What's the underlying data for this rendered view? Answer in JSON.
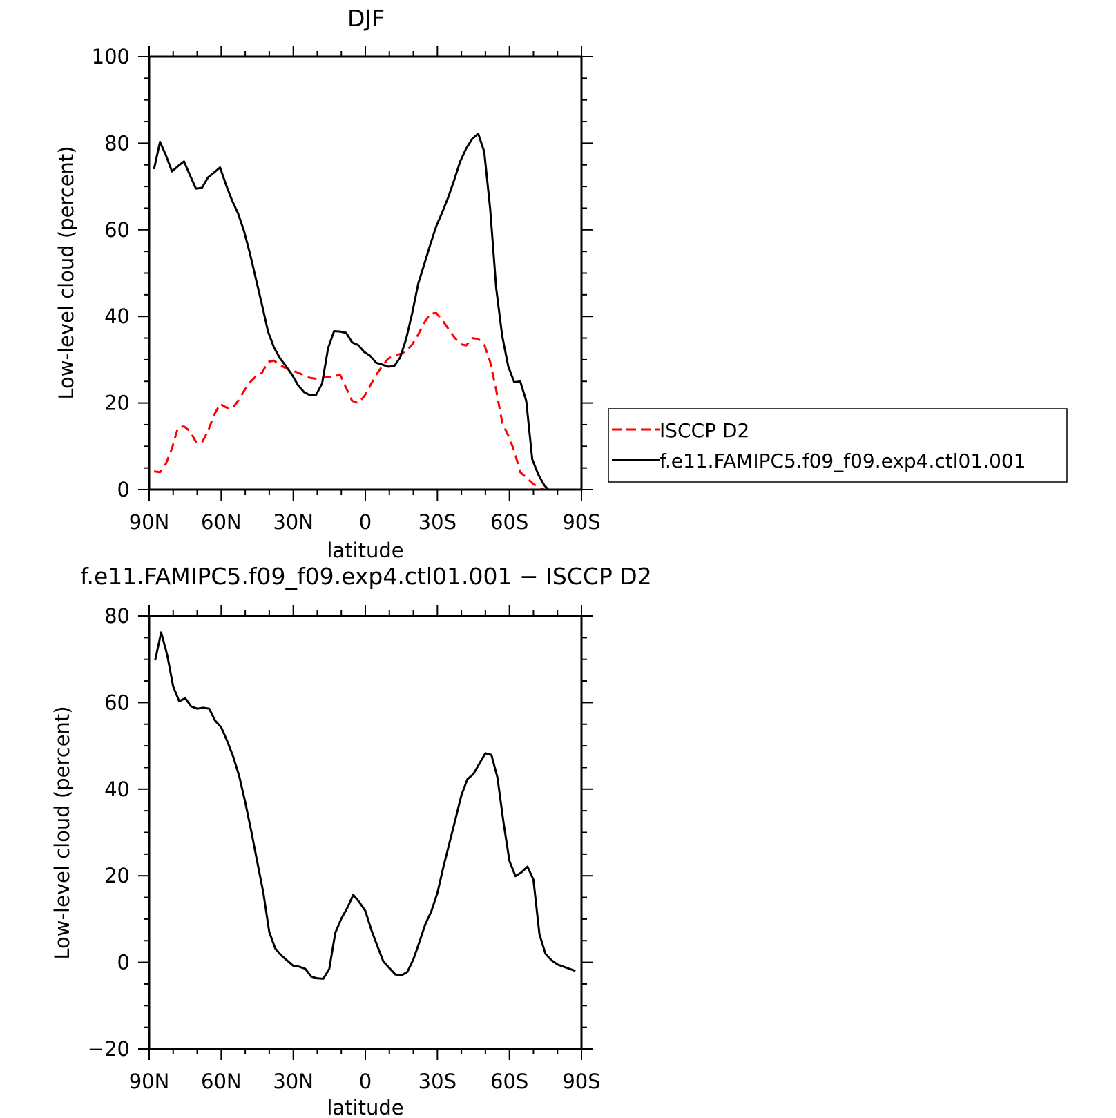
{
  "chart_data": [
    {
      "type": "line",
      "title": "DJF",
      "xlabel": "latitude",
      "ylabel": "Low-level cloud (percent)",
      "ylim": [
        0,
        100
      ],
      "yticks": [
        0,
        20,
        40,
        60,
        80,
        100
      ],
      "xticks": [
        {
          "value": 90,
          "label": "90N"
        },
        {
          "value": 60,
          "label": "60N"
        },
        {
          "value": 30,
          "label": "30N"
        },
        {
          "value": 0,
          "label": "0"
        },
        {
          "value": -30,
          "label": "30S"
        },
        {
          "value": -60,
          "label": "60S"
        },
        {
          "value": -90,
          "label": "90S"
        }
      ],
      "xlim": [
        90,
        -90
      ],
      "grid": false,
      "legend_placement": "right",
      "series": [
        {
          "name": "ISCCP D2",
          "color": "#ff0000",
          "style": "dashed",
          "x": [
            88,
            85.5,
            83,
            80.5,
            78,
            75.5,
            73,
            70.5,
            68,
            65.5,
            63,
            60.5,
            58,
            55.5,
            53,
            50.5,
            48,
            45.5,
            43,
            40.5,
            38,
            35.5,
            33,
            30.5,
            28,
            25.5,
            23,
            20.5,
            18,
            15.5,
            13,
            10.5,
            8,
            5.5,
            3,
            0.5,
            -2,
            -4.5,
            -7,
            -9.5,
            -12,
            -14.5,
            -17,
            -19.5,
            -22,
            -24.5,
            -27,
            -29.5,
            -32,
            -34.5,
            -37,
            -39.5,
            -42,
            -44.5,
            -47,
            -49.5,
            -52,
            -54.5,
            -57,
            -59.5,
            -62,
            -64.5,
            -67,
            -69.5,
            -72,
            -74.5,
            -77,
            -79.5,
            -82,
            -84.5,
            -87,
            -89.5
          ],
          "values": [
            4.2,
            4.0,
            6.0,
            9.5,
            14.3,
            14.6,
            13.5,
            11.0,
            10.9,
            13.5,
            17.2,
            19.8,
            19.0,
            18.6,
            20.5,
            22.8,
            24.8,
            26.2,
            27.0,
            29.5,
            29.8,
            28.8,
            28.0,
            27.5,
            27.0,
            26.4,
            25.8,
            25.6,
            25.8,
            26.0,
            26.2,
            26.5,
            23.5,
            20.5,
            20.0,
            21.5,
            24.0,
            26.5,
            28.5,
            30.2,
            31.0,
            31.3,
            32.0,
            33.5,
            35.8,
            38.5,
            40.6,
            40.8,
            39.2,
            37.2,
            35.2,
            33.6,
            33.3,
            35.0,
            34.8,
            33.5,
            29.5,
            23.0,
            15.5,
            12.5,
            9.0,
            4.0,
            2.8,
            1.5,
            0.5,
            0.0,
            -0.5,
            -1.2,
            -1.8,
            -2.3,
            -2.6,
            -2.8
          ]
        },
        {
          "name": "f.e11.FAMIPC5.f09_f09.exp4.ctl01.001",
          "color": "#000000",
          "style": "solid",
          "x": [
            88,
            85.5,
            83,
            80.5,
            78,
            75.5,
            73,
            70.5,
            68,
            65.5,
            63,
            60.5,
            58,
            55.5,
            53,
            50.5,
            48,
            45.5,
            43,
            40.5,
            38,
            35.5,
            33,
            30.5,
            28,
            25.5,
            23,
            20.5,
            18,
            15.5,
            13,
            10.5,
            8,
            5.5,
            3,
            0.5,
            -2,
            -4.5,
            -7,
            -9.5,
            -12,
            -14.5,
            -17,
            -19.5,
            -22,
            -24.5,
            -27,
            -29.5,
            -32,
            -34.5,
            -37,
            -39.5,
            -42,
            -44.5,
            -47,
            -49.5,
            -52,
            -54.5,
            -57,
            -59.5,
            -62,
            -64.5,
            -67,
            -69.5,
            -72,
            -74.5,
            -77,
            -79.5,
            -82,
            -84.5,
            -87,
            -89.5
          ],
          "values": [
            74.0,
            80.3,
            77.2,
            73.5,
            74.7,
            75.8,
            72.6,
            69.5,
            69.7,
            72.1,
            73.2,
            74.4,
            70.4,
            66.8,
            63.8,
            59.7,
            54.4,
            48.5,
            42.6,
            36.5,
            32.8,
            30.3,
            28.5,
            26.5,
            24.1,
            22.5,
            21.8,
            21.9,
            24.5,
            32.7,
            36.6,
            36.5,
            36.2,
            34.0,
            33.4,
            31.8,
            30.9,
            29.3,
            28.9,
            28.4,
            28.5,
            30.5,
            34.8,
            40.7,
            47.5,
            52.0,
            56.5,
            60.8,
            64.0,
            67.5,
            71.5,
            75.8,
            78.8,
            81.0,
            82.2,
            78.0,
            64.8,
            46.5,
            35.5,
            28.5,
            24.8,
            25.0,
            20.5,
            7.0,
            3.5,
            1.0,
            -0.5,
            -1.5,
            -2.0,
            -2.5,
            -2.8,
            -3.0
          ]
        }
      ]
    },
    {
      "type": "line",
      "title": "f.e11.FAMIPC5.f09_f09.exp4.ctl01.001 − ISCCP D2",
      "xlabel": "latitude",
      "ylabel": "Low-level cloud (percent)",
      "ylim": [
        -20,
        80
      ],
      "yticks": [
        -20,
        0,
        20,
        40,
        60,
        80
      ],
      "ytick_labels": [
        "−20",
        "0",
        "20",
        "40",
        "60",
        "80"
      ],
      "xticks": [
        {
          "value": 90,
          "label": "90N"
        },
        {
          "value": 60,
          "label": "60N"
        },
        {
          "value": 30,
          "label": "30N"
        },
        {
          "value": 0,
          "label": "0"
        },
        {
          "value": -30,
          "label": "30S"
        },
        {
          "value": -60,
          "label": "60S"
        },
        {
          "value": -90,
          "label": "90S"
        }
      ],
      "xlim": [
        90,
        -90
      ],
      "grid": false,
      "series": [
        {
          "color": "#000000",
          "style": "solid",
          "x": [
            87.5,
            85,
            82.5,
            80,
            77.5,
            75,
            72.5,
            70,
            67.5,
            65,
            62.5,
            60,
            57.5,
            55,
            52.5,
            50,
            47.5,
            45,
            42.5,
            40,
            37.5,
            35,
            32.5,
            30,
            27.5,
            25,
            22.5,
            20,
            17.5,
            15,
            12.5,
            10,
            7.5,
            5,
            2.5,
            0,
            -2.5,
            -5,
            -7.5,
            -10,
            -12.5,
            -15,
            -17.5,
            -20,
            -22.5,
            -25,
            -27.5,
            -30,
            -32.5,
            -35,
            -37.5,
            -40,
            -42.5,
            -45,
            -47.5,
            -50,
            -52.5,
            -55,
            -57.5,
            -60,
            -62.5,
            -65,
            -67.5,
            -70,
            -72.5,
            -75,
            -77.5,
            -80,
            -82.5,
            -85,
            -87.5
          ],
          "values": [
            69.8,
            76.2,
            71.0,
            63.7,
            60.3,
            61.0,
            59.1,
            58.6,
            58.8,
            58.6,
            55.8,
            54.3,
            51.1,
            47.5,
            43.0,
            37.0,
            30.3,
            23.2,
            16.2,
            7.0,
            3.2,
            1.6,
            0.4,
            -0.8,
            -1.0,
            -1.5,
            -3.3,
            -3.7,
            -3.8,
            -1.5,
            6.8,
            10.1,
            12.6,
            15.6,
            13.9,
            11.9,
            7.5,
            3.8,
            0.2,
            -1.3,
            -2.8,
            -3.0,
            -2.2,
            0.7,
            4.7,
            8.8,
            11.8,
            16.0,
            22.0,
            27.5,
            33.0,
            38.6,
            42.3,
            43.5,
            45.9,
            48.3,
            47.9,
            42.7,
            32.4,
            23.4,
            19.9,
            20.8,
            22.1,
            19.1,
            6.5,
            2.0,
            0.5,
            -0.5,
            -1.0,
            -1.5,
            -2.0
          ]
        }
      ]
    }
  ]
}
